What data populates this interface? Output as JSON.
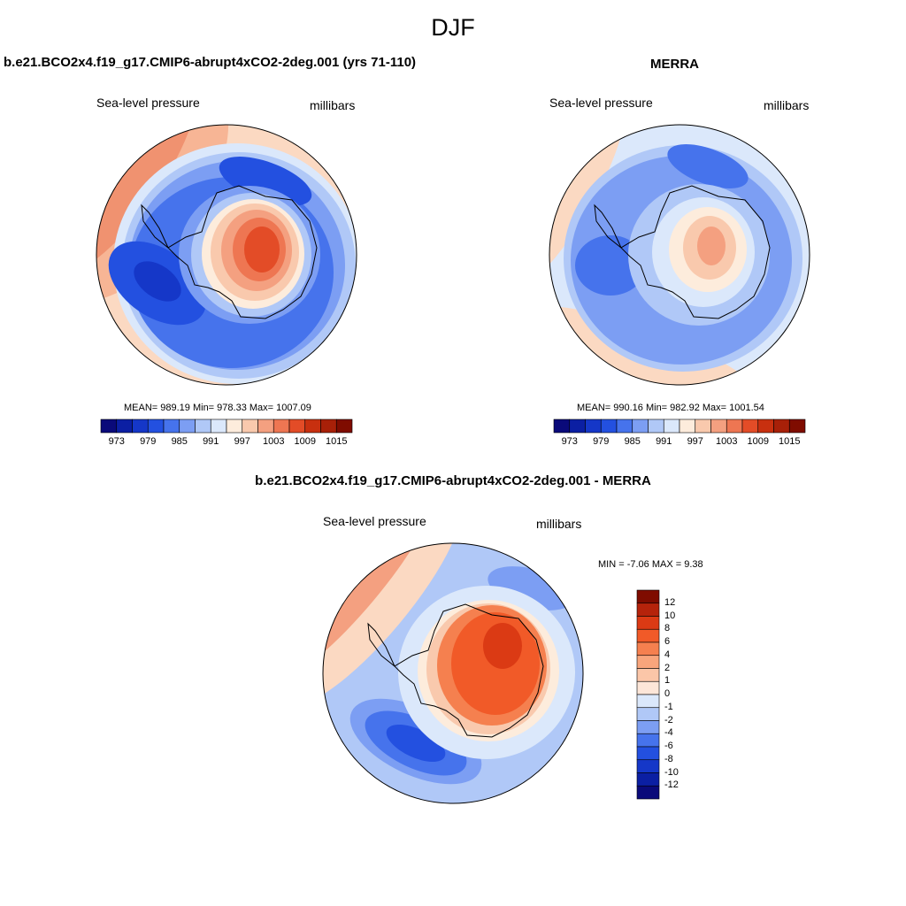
{
  "figure": {
    "title": "DJF"
  },
  "panels": {
    "model": {
      "title": "b.e21.BCO2x4.f19_g17.CMIP6-abrupt4xCO2-2deg.001 (yrs 71-110)",
      "variable": "Sea-level pressure",
      "units": "millibars",
      "stats": "MEAN= 989.19  Min= 978.33  Max= 1007.09"
    },
    "obs": {
      "title": "MERRA",
      "variable": "Sea-level pressure",
      "units": "millibars",
      "stats": "MEAN= 990.16  Min= 982.92  Max= 1001.54"
    },
    "diff": {
      "title": "b.e21.BCO2x4.f19_g17.CMIP6-abrupt4xCO2-2deg.001 - MERRA",
      "variable": "Sea-level pressure",
      "units": "millibars",
      "stats": "MIN =  -7.06 MAX =   9.38"
    }
  },
  "colorbars": {
    "abs": {
      "colors": [
        "#0a0a7a",
        "#0b1fa3",
        "#1537c8",
        "#2350e0",
        "#4673ec",
        "#7c9ef3",
        "#b0c8f7",
        "#dbe8fb",
        "#fdecdc",
        "#f9c9ad",
        "#f4a080",
        "#ee7652",
        "#e34c27",
        "#c8300f",
        "#a82008",
        "#7f0c00"
      ],
      "ticks": [
        "973",
        "979",
        "985",
        "991",
        "997",
        "1003",
        "1009",
        "1015"
      ]
    },
    "diff": {
      "colors": [
        "#7f0c00",
        "#b5230b",
        "#db3a14",
        "#f15a28",
        "#f5804f",
        "#f8a57c",
        "#fbc6a8",
        "#fde6d8",
        "#dbe8fb",
        "#b0c8f7",
        "#7c9ef3",
        "#4673ec",
        "#2350e0",
        "#1537c8",
        "#0b1fa3",
        "#0a0a7a"
      ],
      "ticks": [
        "12",
        "10",
        "8",
        "6",
        "4",
        "2",
        "1",
        "0",
        "-1",
        "-2",
        "-4",
        "-6",
        "-8",
        "-10",
        "-12"
      ]
    }
  }
}
